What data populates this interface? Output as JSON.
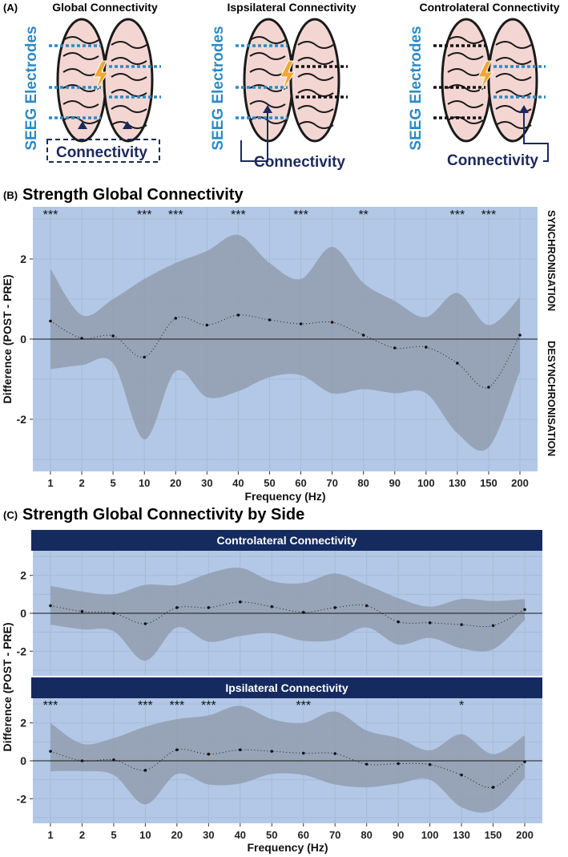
{
  "panelA": {
    "label": "(A)",
    "items": [
      {
        "title": "Global Connectivity",
        "electrodes": "SEEG Electrodes",
        "connectivity": "Connectivity",
        "mode": "global"
      },
      {
        "title": "Ispsilateral Connectivity",
        "electrodes": "SEEG Electrodes",
        "connectivity": "Connectivity",
        "mode": "ipsi"
      },
      {
        "title": "Controlateral Connectivity",
        "electrodes": "SEEG Electrodes",
        "connectivity": "Connectivity",
        "mode": "contra"
      }
    ],
    "colors": {
      "electrode_blue": "#2b8ac4",
      "navy": "#1b2a5c",
      "brain": "#f3d6d2",
      "bolt": "#f0a830"
    }
  },
  "chart_data": [
    {
      "id": "B",
      "panel_label": "(B)",
      "type": "line",
      "title": "Strength Global Connectivity",
      "xlabel": "Frequency (Hz)",
      "ylabel": "Difference (POST - PRE)",
      "categories": [
        "1",
        "2",
        "5",
        "10",
        "20",
        "30",
        "40",
        "50",
        "60",
        "70",
        "80",
        "90",
        "100",
        "130",
        "150",
        "200"
      ],
      "ylim": [
        -3.3,
        3.3
      ],
      "yticks": [
        -2,
        0,
        2
      ],
      "series": [
        {
          "name": "mean",
          "values": [
            0.45,
            0.02,
            0.08,
            -0.45,
            0.52,
            0.35,
            0.6,
            0.48,
            0.38,
            0.42,
            0.1,
            -0.22,
            -0.2,
            -0.6,
            -1.2,
            0.1
          ]
        },
        {
          "name": "upper",
          "values": [
            1.75,
            0.6,
            1.0,
            1.5,
            1.9,
            2.2,
            2.6,
            1.9,
            1.5,
            2.3,
            1.4,
            0.95,
            0.55,
            1.15,
            0.35,
            1.05
          ]
        },
        {
          "name": "lower",
          "values": [
            -0.75,
            -0.65,
            -0.6,
            -2.5,
            -0.8,
            -1.45,
            -1.3,
            -0.95,
            -0.9,
            -1.35,
            -1.25,
            -1.35,
            -1.35,
            -2.35,
            -2.7,
            -0.8
          ]
        }
      ],
      "significance": [
        {
          "category": "1",
          "label": "***"
        },
        {
          "category": "10",
          "label": "***"
        },
        {
          "category": "20",
          "label": "***"
        },
        {
          "category": "40",
          "label": "***"
        },
        {
          "category": "60",
          "label": "***"
        },
        {
          "category": "80",
          "label": "**"
        },
        {
          "category": "130",
          "label": "***"
        },
        {
          "category": "150",
          "label": "***"
        }
      ],
      "side_labels": {
        "top": "SYNCHRONISATION",
        "bottom": "DESYNCHRONISATION"
      },
      "colors": {
        "background": "#b3c8e6",
        "band": "#8d98a8",
        "grid": "#a3b8d6"
      }
    },
    {
      "id": "C",
      "panel_label": "(C)",
      "type": "line",
      "title": "Strength Global Connectivity by Side",
      "xlabel": "Frequency (Hz)",
      "ylabel": "Difference (POST - PRE)",
      "categories": [
        "1",
        "2",
        "5",
        "10",
        "20",
        "30",
        "40",
        "50",
        "60",
        "70",
        "80",
        "90",
        "100",
        "130",
        "150",
        "200"
      ],
      "ylim": [
        -3.3,
        3.3
      ],
      "yticks": [
        -2,
        0,
        2
      ],
      "facets": [
        {
          "strip": "Controlateral Connectivity",
          "series": [
            {
              "name": "mean",
              "values": [
                0.4,
                0.1,
                0.0,
                -0.55,
                0.3,
                0.3,
                0.6,
                0.35,
                0.05,
                0.3,
                0.4,
                -0.45,
                -0.5,
                -0.6,
                -0.65,
                0.2
              ]
            },
            {
              "name": "upper",
              "values": [
                1.45,
                1.15,
                1.0,
                1.5,
                1.5,
                2.1,
                2.4,
                1.7,
                1.6,
                2.1,
                1.5,
                0.8,
                0.35,
                0.75,
                0.65,
                0.75
              ]
            },
            {
              "name": "lower",
              "values": [
                -0.6,
                -0.85,
                -0.95,
                -2.5,
                -0.75,
                -1.5,
                -1.2,
                -1.05,
                -1.45,
                -1.4,
                -0.75,
                -1.65,
                -1.3,
                -1.85,
                -1.9,
                -0.35
              ]
            }
          ],
          "significance": []
        },
        {
          "strip": "Ipsilateral Connectivity",
          "series": [
            {
              "name": "mean",
              "values": [
                0.5,
                0.0,
                0.05,
                -0.5,
                0.58,
                0.35,
                0.58,
                0.5,
                0.4,
                0.38,
                -0.18,
                -0.15,
                -0.2,
                -0.75,
                -1.4,
                -0.05
              ]
            },
            {
              "name": "upper",
              "values": [
                2.0,
                0.9,
                1.2,
                1.8,
                2.2,
                2.4,
                2.9,
                2.2,
                2.0,
                2.6,
                1.6,
                1.2,
                0.55,
                1.4,
                0.35,
                1.35
              ]
            },
            {
              "name": "lower",
              "values": [
                -0.55,
                -0.55,
                -0.75,
                -2.3,
                -0.7,
                -1.25,
                -1.2,
                -0.7,
                -0.75,
                -1.25,
                -1.4,
                -1.2,
                -1.0,
                -2.45,
                -2.6,
                -0.9
              ]
            }
          ],
          "significance": [
            {
              "category": "1",
              "label": "***"
            },
            {
              "category": "10",
              "label": "***"
            },
            {
              "category": "20",
              "label": "***"
            },
            {
              "category": "30",
              "label": "***"
            },
            {
              "category": "60",
              "label": "***"
            },
            {
              "category": "130",
              "label": "*"
            }
          ]
        }
      ],
      "colors": {
        "background": "#b3c8e6",
        "band": "#8d98a8",
        "strip": "#152a5e"
      }
    }
  ]
}
